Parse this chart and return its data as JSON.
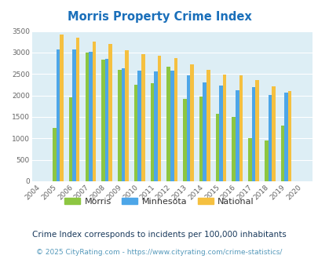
{
  "title": "Morris Property Crime Index",
  "years": [
    2004,
    2005,
    2006,
    2007,
    2008,
    2009,
    2010,
    2011,
    2012,
    2013,
    2014,
    2015,
    2016,
    2017,
    2018,
    2019,
    2020
  ],
  "morris": [
    0,
    1250,
    1960,
    3000,
    2830,
    2600,
    2250,
    2280,
    2670,
    1920,
    1980,
    1570,
    1500,
    1010,
    960,
    1300,
    0
  ],
  "minnesota": [
    0,
    3080,
    3080,
    3020,
    2850,
    2640,
    2580,
    2560,
    2580,
    2460,
    2310,
    2240,
    2130,
    2190,
    2010,
    2060,
    0
  ],
  "national": [
    0,
    3420,
    3340,
    3260,
    3200,
    3050,
    2960,
    2920,
    2870,
    2730,
    2600,
    2490,
    2460,
    2360,
    2210,
    2100,
    0
  ],
  "morris_color": "#8dc641",
  "minnesota_color": "#4da6e8",
  "national_color": "#f5c040",
  "background_color": "#ddeef5",
  "ylim": [
    0,
    3500
  ],
  "yticks": [
    0,
    500,
    1000,
    1500,
    2000,
    2500,
    3000,
    3500
  ],
  "subtitle": "Crime Index corresponds to incidents per 100,000 inhabitants",
  "footer": "© 2025 CityRating.com - https://www.cityrating.com/crime-statistics/",
  "title_color": "#1a6fba",
  "subtitle_color": "#1a3a5c",
  "footer_color": "#5599bb"
}
